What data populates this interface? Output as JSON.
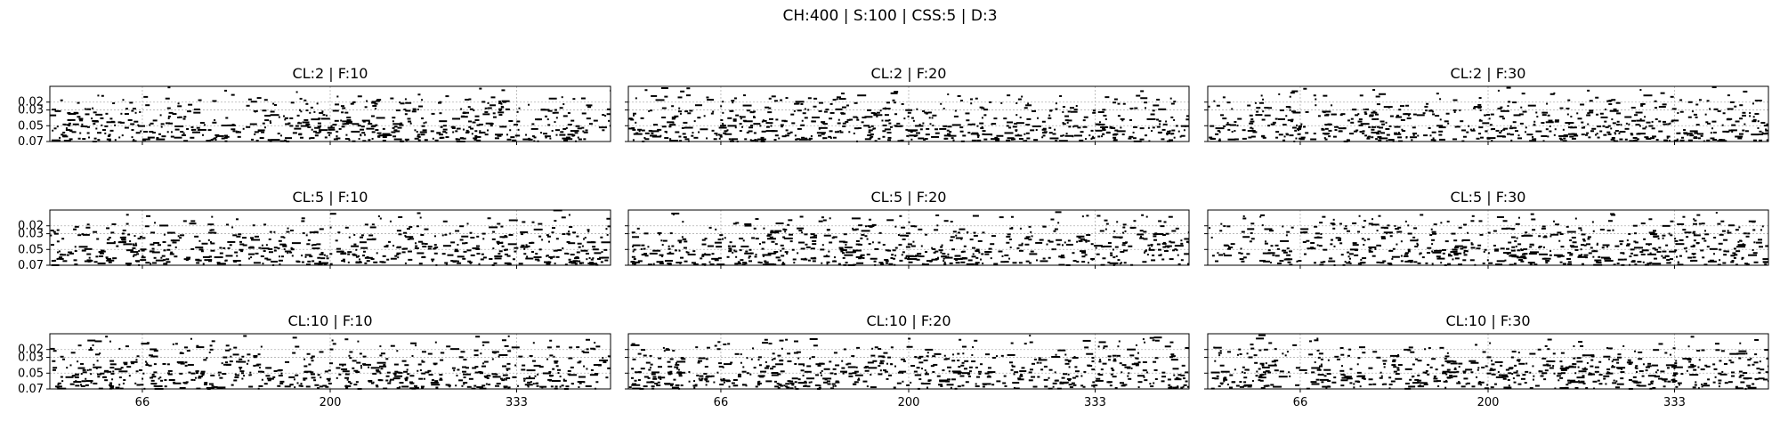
{
  "suptitle": "CH:400 | S:100 | CSS:5 | D:3",
  "colors": {
    "marks": "#000000",
    "grid": "#b0b0b0",
    "background": "#ffffff"
  },
  "chart_data": [
    {
      "type": "scatter",
      "title": "CL:2 | F:10",
      "seed": 11,
      "xlim": [
        0,
        400
      ],
      "ylim": [
        0.07,
        0.0
      ],
      "xticks": [
        66,
        200,
        333
      ],
      "yticks": [
        0.02,
        0.03,
        0.05,
        0.07
      ],
      "grid": true
    },
    {
      "type": "scatter",
      "title": "CL:2 | F:20",
      "seed": 12,
      "xlim": [
        0,
        400
      ],
      "ylim": [
        0.07,
        0.0
      ],
      "xticks": [
        66,
        200,
        333
      ],
      "yticks": [
        0.02,
        0.03,
        0.05,
        0.07
      ],
      "grid": true
    },
    {
      "type": "scatter",
      "title": "CL:2 | F:30",
      "seed": 13,
      "xlim": [
        0,
        400
      ],
      "ylim": [
        0.07,
        0.0
      ],
      "xticks": [
        66,
        200,
        333
      ],
      "yticks": [
        0.02,
        0.03,
        0.05,
        0.07
      ],
      "grid": true
    },
    {
      "type": "scatter",
      "title": "CL:5 | F:10",
      "seed": 21,
      "xlim": [
        0,
        400
      ],
      "ylim": [
        0.07,
        0.0
      ],
      "xticks": [
        66,
        200,
        333
      ],
      "yticks": [
        0.02,
        0.03,
        0.05,
        0.07
      ],
      "grid": true
    },
    {
      "type": "scatter",
      "title": "CL:5 | F:20",
      "seed": 22,
      "xlim": [
        0,
        400
      ],
      "ylim": [
        0.07,
        0.0
      ],
      "xticks": [
        66,
        200,
        333
      ],
      "yticks": [
        0.02,
        0.03,
        0.05,
        0.07
      ],
      "grid": true
    },
    {
      "type": "scatter",
      "title": "CL:5 | F:30",
      "seed": 23,
      "xlim": [
        0,
        400
      ],
      "ylim": [
        0.07,
        0.0
      ],
      "xticks": [
        66,
        200,
        333
      ],
      "yticks": [
        0.02,
        0.03,
        0.05,
        0.07
      ],
      "grid": true
    },
    {
      "type": "scatter",
      "title": "CL:10 | F:10",
      "seed": 31,
      "xlim": [
        0,
        400
      ],
      "ylim": [
        0.07,
        0.0
      ],
      "xticks": [
        66,
        200,
        333
      ],
      "yticks": [
        0.02,
        0.03,
        0.05,
        0.07
      ],
      "grid": true
    },
    {
      "type": "scatter",
      "title": "CL:10 | F:20",
      "seed": 32,
      "xlim": [
        0,
        400
      ],
      "ylim": [
        0.07,
        0.0
      ],
      "xticks": [
        66,
        200,
        333
      ],
      "yticks": [
        0.02,
        0.03,
        0.05,
        0.07
      ],
      "grid": true
    },
    {
      "type": "scatter",
      "title": "CL:10 | F:30",
      "seed": 33,
      "xlim": [
        0,
        400
      ],
      "ylim": [
        0.07,
        0.0
      ],
      "xticks": [
        66,
        200,
        333
      ],
      "yticks": [
        0.02,
        0.03,
        0.05,
        0.07
      ],
      "grid": true
    }
  ]
}
